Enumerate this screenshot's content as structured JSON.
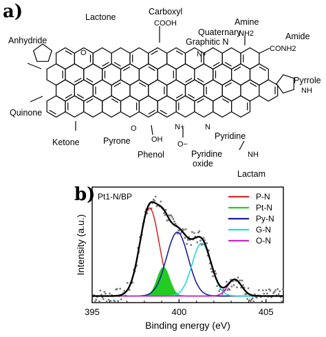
{
  "panel_a": {
    "letter": "a)",
    "labels": {
      "lactone": "Lactone",
      "carboxyl": "Carboxyl",
      "cooh": "COOH",
      "amine": "Amine",
      "nh2": "NH2",
      "quaternary_line1": "Quaternary",
      "quaternary_line2": "Graphitic N",
      "amide": "Amide",
      "conh2": "CONH2",
      "anhydride": "Anhydride",
      "pyrrole": "Pyrrole",
      "nh_pyrrole": "NH",
      "quinone": "Quinone",
      "ketone": "Ketone",
      "pyrone": "Pyrone",
      "phenol": "Phenol",
      "oh": "OH",
      "pyridine_oxide_line1": "Pyridine",
      "pyridine_oxide_line2": "oxide",
      "pyridine": "Pyridine",
      "lactam": "Lactam",
      "nh_lactam": "NH",
      "o_minus": "O−",
      "n_plus": "N+",
      "o": "O",
      "n": "N"
    }
  },
  "panel_b": {
    "letter": "b)"
  },
  "chart_data": {
    "type": "line",
    "sample_label": "Pt1-N/BP",
    "xlabel": "Binding energy (eV)",
    "ylabel": "Intensity (a.u.)",
    "xlim": [
      395,
      406
    ],
    "ylim": [
      0,
      1.05
    ],
    "x_ticks": [
      395,
      400,
      405
    ],
    "x_tick_labels": [
      "395",
      "400",
      "405"
    ],
    "grid": false,
    "legend_position": "top-right",
    "background": 0.06,
    "components": [
      {
        "name": "P-N",
        "center": 398.3,
        "height": 0.8,
        "width": 0.55,
        "color": "#d42a2a"
      },
      {
        "name": "Pt-N",
        "center": 399.1,
        "height": 0.26,
        "width": 0.35,
        "color": "#22cc22",
        "filled": true
      },
      {
        "name": "Py-N",
        "center": 399.9,
        "height": 0.58,
        "width": 0.62,
        "color": "#1a1aa0"
      },
      {
        "name": "G-N",
        "center": 401.3,
        "height": 0.48,
        "width": 0.55,
        "color": "#22d8d8"
      },
      {
        "name": "O-N",
        "center": 403.2,
        "height": 0.15,
        "width": 0.4,
        "color": "#cc22cc"
      }
    ],
    "envelope_color": "#000000",
    "data_points_color": "#777777"
  }
}
